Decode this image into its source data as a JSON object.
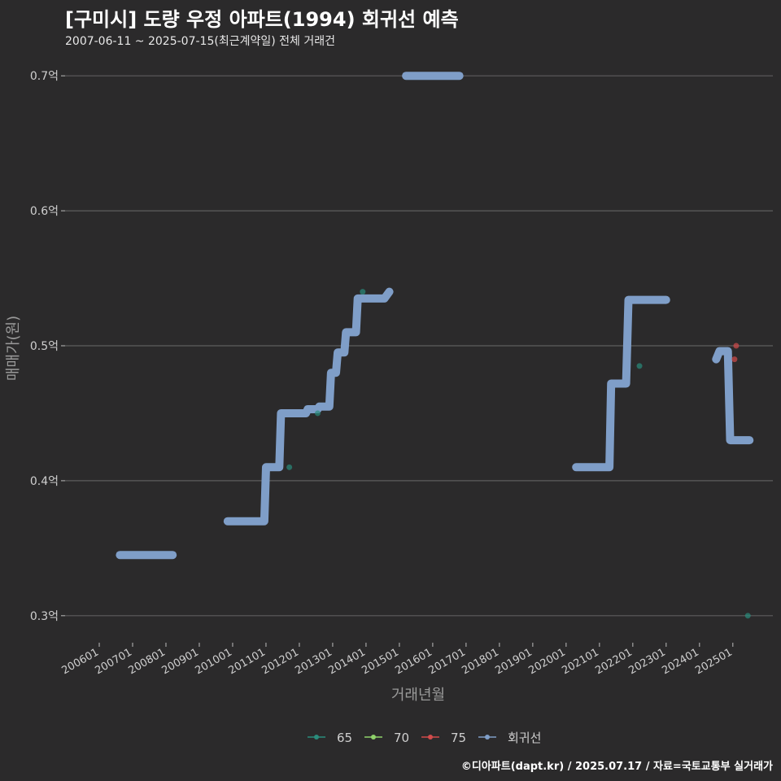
{
  "chart_data": {
    "type": "line",
    "title": "[구미시] 도량 우정 아파트(1994) 회귀선 예측",
    "subtitle": "2007-06-11 ~ 2025-07-15(최근계약일) 전체 거래건",
    "xlabel": "거래년월",
    "ylabel": "매매가(원)",
    "caption": "©디아파트(dapt.kr) / 2025.07.17 / 자료=국토교통부 실거래가",
    "ylim": [
      0.28,
      0.72
    ],
    "xlim": [
      2006.0,
      2026.2
    ],
    "y_ticks": [
      {
        "value": 0.3,
        "label": "0.3억"
      },
      {
        "value": 0.4,
        "label": "0.4억"
      },
      {
        "value": 0.5,
        "label": "0.5억"
      },
      {
        "value": 0.6,
        "label": "0.6억"
      },
      {
        "value": 0.7,
        "label": "0.7억"
      }
    ],
    "x_ticks": [
      {
        "value": 2006.0,
        "label": "200601"
      },
      {
        "value": 2007.0,
        "label": "200701"
      },
      {
        "value": 2008.0,
        "label": "200801"
      },
      {
        "value": 2009.0,
        "label": "200901"
      },
      {
        "value": 2010.0,
        "label": "201001"
      },
      {
        "value": 2011.0,
        "label": "201101"
      },
      {
        "value": 2012.0,
        "label": "201201"
      },
      {
        "value": 2013.0,
        "label": "201301"
      },
      {
        "value": 2014.0,
        "label": "201401"
      },
      {
        "value": 2015.0,
        "label": "201501"
      },
      {
        "value": 2016.0,
        "label": "201601"
      },
      {
        "value": 2017.0,
        "label": "201701"
      },
      {
        "value": 2018.0,
        "label": "201801"
      },
      {
        "value": 2019.0,
        "label": "201901"
      },
      {
        "value": 2020.0,
        "label": "202001"
      },
      {
        "value": 2021.0,
        "label": "202101"
      },
      {
        "value": 2022.0,
        "label": "202201"
      },
      {
        "value": 2023.0,
        "label": "202301"
      },
      {
        "value": 2024.0,
        "label": "202401"
      },
      {
        "value": 2025.0,
        "label": "202501"
      }
    ],
    "series": [
      {
        "name": "65",
        "color": "#2a8c7c",
        "kind": "points",
        "points": [
          [
            2011.7,
            0.41
          ],
          [
            2012.55,
            0.45
          ],
          [
            2013.9,
            0.54
          ],
          [
            2022.2,
            0.485
          ],
          [
            2025.45,
            0.3
          ]
        ]
      },
      {
        "name": "70",
        "color": "#8fd16a",
        "kind": "points",
        "points": []
      },
      {
        "name": "75",
        "color": "#d24b4b",
        "kind": "points",
        "points": [
          [
            2025.05,
            0.49
          ],
          [
            2025.1,
            0.5
          ]
        ]
      },
      {
        "name": "회귀선",
        "color": "#7f9ec8",
        "kind": "line",
        "segments": [
          [
            [
              2006.62,
              0.345
            ],
            [
              2008.2,
              0.345
            ]
          ],
          [
            [
              2009.85,
              0.37
            ],
            [
              2010.95,
              0.37
            ],
            [
              2011.0,
              0.41
            ],
            [
              2011.4,
              0.41
            ],
            [
              2011.45,
              0.45
            ],
            [
              2011.8,
              0.45
            ],
            [
              2012.2,
              0.45
            ],
            [
              2012.25,
              0.453
            ],
            [
              2012.55,
              0.453
            ],
            [
              2012.6,
              0.455
            ],
            [
              2012.9,
              0.455
            ],
            [
              2012.95,
              0.48
            ],
            [
              2013.1,
              0.48
            ],
            [
              2013.15,
              0.495
            ],
            [
              2013.35,
              0.495
            ],
            [
              2013.4,
              0.51
            ],
            [
              2013.7,
              0.51
            ],
            [
              2013.75,
              0.535
            ],
            [
              2014.55,
              0.535
            ],
            [
              2014.7,
              0.54
            ]
          ],
          [
            [
              2015.2,
              0.7
            ],
            [
              2016.8,
              0.7
            ]
          ],
          [
            [
              2020.3,
              0.41
            ],
            [
              2021.3,
              0.41
            ],
            [
              2021.35,
              0.472
            ],
            [
              2021.8,
              0.472
            ],
            [
              2021.87,
              0.534
            ],
            [
              2023.0,
              0.534
            ]
          ],
          [
            [
              2024.5,
              0.49
            ],
            [
              2024.6,
              0.496
            ],
            [
              2024.85,
              0.496
            ],
            [
              2024.92,
              0.43
            ],
            [
              2025.5,
              0.43
            ]
          ]
        ]
      }
    ]
  }
}
